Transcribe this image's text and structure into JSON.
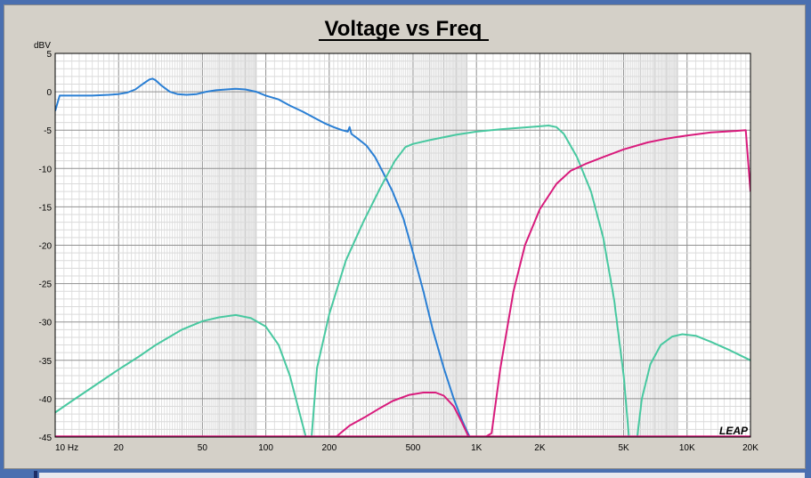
{
  "chart_data": {
    "type": "line",
    "title": "Voltage vs Freq",
    "ylabel": "dBV",
    "xlabel": "",
    "xscale": "log",
    "xlim": [
      10,
      20000
    ],
    "ylim": [
      -45,
      5
    ],
    "yticks": [
      5,
      0,
      -5,
      -10,
      -15,
      -20,
      -25,
      -30,
      -35,
      -40,
      -45
    ],
    "ytick_labels": [
      "5",
      "0",
      "-5",
      "-10",
      "-15",
      "-20",
      "-25",
      "-30",
      "-35",
      "-40",
      "-45"
    ],
    "xticks": [
      10,
      20,
      50,
      100,
      200,
      500,
      1000,
      2000,
      5000,
      10000,
      20000
    ],
    "xtick_labels": [
      "10  Hz",
      "20",
      "50",
      "100",
      "200",
      "500",
      "1K",
      "2K",
      "5K",
      "10K",
      "20K"
    ],
    "grid": true,
    "watermark": "LEAP",
    "series": [
      {
        "color": "#2a7fd4",
        "points": [
          [
            10,
            -2.5
          ],
          [
            10.5,
            -0.5
          ],
          [
            12,
            -0.5
          ],
          [
            15,
            -0.5
          ],
          [
            18,
            -0.4
          ],
          [
            20,
            -0.3
          ],
          [
            22,
            -0.1
          ],
          [
            24,
            0.3
          ],
          [
            26,
            1.0
          ],
          [
            28,
            1.6
          ],
          [
            29,
            1.7
          ],
          [
            30,
            1.5
          ],
          [
            32,
            0.8
          ],
          [
            35,
            0
          ],
          [
            38,
            -0.3
          ],
          [
            42,
            -0.4
          ],
          [
            47,
            -0.3
          ],
          [
            52,
            0
          ],
          [
            58,
            0.2
          ],
          [
            65,
            0.3
          ],
          [
            72,
            0.4
          ],
          [
            80,
            0.3
          ],
          [
            90,
            0
          ],
          [
            100,
            -0.5
          ],
          [
            115,
            -1.0
          ],
          [
            130,
            -1.8
          ],
          [
            150,
            -2.6
          ],
          [
            170,
            -3.4
          ],
          [
            190,
            -4.1
          ],
          [
            210,
            -4.6
          ],
          [
            230,
            -5.0
          ],
          [
            245,
            -5.2
          ],
          [
            250,
            -4.6
          ],
          [
            255,
            -5.5
          ],
          [
            270,
            -6.0
          ],
          [
            300,
            -7.0
          ],
          [
            330,
            -8.5
          ],
          [
            360,
            -10.5
          ],
          [
            400,
            -13.0
          ],
          [
            450,
            -16.5
          ],
          [
            500,
            -21.0
          ],
          [
            560,
            -26.0
          ],
          [
            620,
            -31.0
          ],
          [
            700,
            -36.0
          ],
          [
            780,
            -40.0
          ],
          [
            860,
            -43.0
          ],
          [
            930,
            -45.0
          ]
        ]
      },
      {
        "color": "#48c8a0",
        "points": [
          [
            10,
            -41.8
          ],
          [
            12,
            -40.3
          ],
          [
            15,
            -38.5
          ],
          [
            20,
            -36.2
          ],
          [
            25,
            -34.5
          ],
          [
            30,
            -33.0
          ],
          [
            40,
            -31.0
          ],
          [
            50,
            -29.9
          ],
          [
            60,
            -29.4
          ],
          [
            72,
            -29.1
          ],
          [
            85,
            -29.5
          ],
          [
            100,
            -30.6
          ],
          [
            115,
            -33.0
          ],
          [
            130,
            -37.0
          ],
          [
            145,
            -42.0
          ],
          [
            155,
            -45.0
          ],
          [
            165,
            -45.0
          ],
          [
            175,
            -36.0
          ],
          [
            200,
            -29.0
          ],
          [
            240,
            -22.0
          ],
          [
            290,
            -17.0
          ],
          [
            350,
            -12.5
          ],
          [
            410,
            -9.0
          ],
          [
            460,
            -7.2
          ],
          [
            500,
            -6.8
          ],
          [
            600,
            -6.3
          ],
          [
            800,
            -5.6
          ],
          [
            1000,
            -5.2
          ],
          [
            1300,
            -4.9
          ],
          [
            1600,
            -4.7
          ],
          [
            2000,
            -4.5
          ],
          [
            2200,
            -4.4
          ],
          [
            2400,
            -4.6
          ],
          [
            2600,
            -5.5
          ],
          [
            3000,
            -8.5
          ],
          [
            3500,
            -13.0
          ],
          [
            4000,
            -19.0
          ],
          [
            4500,
            -27.0
          ],
          [
            5000,
            -37.0
          ],
          [
            5300,
            -45.0
          ],
          [
            5800,
            -45.0
          ],
          [
            6100,
            -40.0
          ],
          [
            6700,
            -35.5
          ],
          [
            7500,
            -33.0
          ],
          [
            8500,
            -31.9
          ],
          [
            9500,
            -31.6
          ],
          [
            11000,
            -31.8
          ],
          [
            13000,
            -32.6
          ],
          [
            16000,
            -33.7
          ],
          [
            20000,
            -35.0
          ]
        ]
      },
      {
        "color": "#d81b7c",
        "points": [
          [
            215,
            -45.0
          ],
          [
            250,
            -43.5
          ],
          [
            300,
            -42.3
          ],
          [
            350,
            -41.2
          ],
          [
            400,
            -40.3
          ],
          [
            480,
            -39.5
          ],
          [
            560,
            -39.2
          ],
          [
            640,
            -39.2
          ],
          [
            700,
            -39.6
          ],
          [
            780,
            -41.0
          ],
          [
            850,
            -43.0
          ],
          [
            920,
            -45.0
          ],
          [
            1100,
            -45.0
          ],
          [
            1180,
            -44.5
          ],
          [
            1300,
            -36.0
          ],
          [
            1500,
            -26.0
          ],
          [
            1700,
            -20.0
          ],
          [
            2000,
            -15.3
          ],
          [
            2400,
            -12.0
          ],
          [
            2800,
            -10.3
          ],
          [
            3300,
            -9.4
          ],
          [
            4000,
            -8.5
          ],
          [
            5000,
            -7.5
          ],
          [
            6500,
            -6.6
          ],
          [
            8000,
            -6.1
          ],
          [
            10000,
            -5.7
          ],
          [
            13000,
            -5.3
          ],
          [
            17000,
            -5.1
          ],
          [
            19000,
            -5.0
          ],
          [
            20000,
            -13.0
          ]
        ]
      }
    ]
  }
}
